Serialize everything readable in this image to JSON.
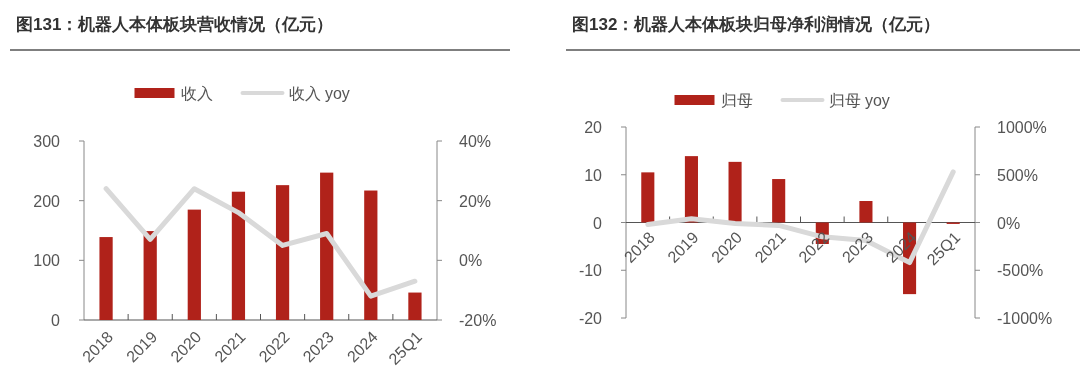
{
  "chart_data": [
    {
      "type": "bar",
      "title": "图131：机器人本体板块营收情况（亿元）",
      "categories": [
        "2018",
        "2019",
        "2020",
        "2021",
        "2022",
        "2023",
        "2024",
        "25Q1"
      ],
      "legend": "top",
      "series": [
        {
          "name": "收入",
          "color": "#b0221a",
          "values": [
            139,
            149,
            185,
            215,
            226,
            247,
            217,
            46
          ]
        },
        {
          "name": "收入 yoy",
          "type": "line",
          "axis": "y2",
          "color": "#d9d9d9",
          "values": [
            24,
            7,
            24,
            16,
            5,
            9,
            -12,
            -7
          ]
        }
      ],
      "ylim": [
        0,
        300
      ],
      "yticks": [
        0,
        100,
        200,
        300
      ],
      "y2lim": [
        -20,
        40
      ],
      "y2ticks": [
        {
          "value": -20,
          "label": "-20%"
        },
        {
          "value": 0,
          "label": "0%"
        },
        {
          "value": 20,
          "label": "20%"
        },
        {
          "value": 40,
          "label": "40%"
        }
      ]
    },
    {
      "type": "bar",
      "title": "图132：机器人本体板块归母净利润情况（亿元）",
      "categories": [
        "2018",
        "2019",
        "2020",
        "2021",
        "2022",
        "2023",
        "2024",
        "25Q1"
      ],
      "legend": "top",
      "series": [
        {
          "name": "归母",
          "color": "#b0221a",
          "values": [
            10.5,
            13.9,
            12.7,
            9.1,
            -4.5,
            4.5,
            -15.0,
            -0.3
          ]
        },
        {
          "name": "归母 yoy",
          "type": "line",
          "axis": "y2",
          "color": "#d9d9d9",
          "values": [
            -20,
            40,
            -10,
            -30,
            -150,
            -190,
            -420,
            530
          ]
        }
      ],
      "ylim": [
        -20,
        20
      ],
      "yticks": [
        -20,
        -10,
        0,
        10,
        20
      ],
      "y2lim": [
        -1000,
        1000
      ],
      "y2ticks": [
        {
          "value": -1000,
          "label": "-1000%"
        },
        {
          "value": -500,
          "label": "-500%"
        },
        {
          "value": 0,
          "label": "0%"
        },
        {
          "value": 500,
          "label": "500%"
        },
        {
          "value": 1000,
          "label": "1000%"
        }
      ]
    }
  ]
}
